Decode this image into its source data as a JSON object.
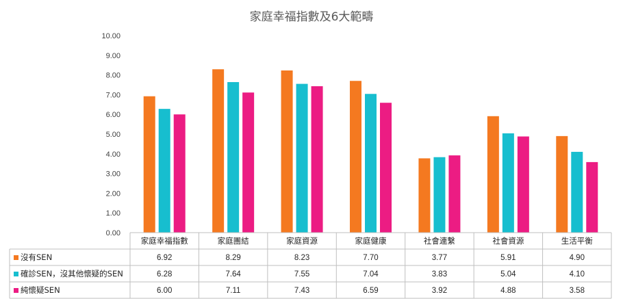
{
  "chart_data": {
    "type": "bar",
    "title": "家庭幸福指數及6大範疇",
    "categories": [
      "家庭幸福指數",
      "家庭團結",
      "家庭資源",
      "家庭健康",
      "社會連繫",
      "社會資源",
      "生活平衡"
    ],
    "ylim": [
      0,
      10
    ],
    "yticks": [
      "0.00",
      "1.00",
      "2.00",
      "3.00",
      "4.00",
      "5.00",
      "6.00",
      "7.00",
      "8.00",
      "9.00",
      "10.00"
    ],
    "grid": false,
    "legend": "data-table",
    "series": [
      {
        "name": "沒有SEN",
        "color": "#F47920",
        "values": [
          6.92,
          8.29,
          8.23,
          7.7,
          3.77,
          5.91,
          4.9
        ],
        "labels": [
          "6.92",
          "8.29",
          "8.23",
          "7.70",
          "3.77",
          "5.91",
          "4.90"
        ]
      },
      {
        "name": "確診SEN，沒其他懷疑的SEN",
        "color": "#17BECF",
        "values": [
          6.28,
          7.64,
          7.55,
          7.04,
          3.83,
          5.04,
          4.1
        ],
        "labels": [
          "6.28",
          "7.64",
          "7.55",
          "7.04",
          "3.83",
          "5.04",
          "4.10"
        ]
      },
      {
        "name": "純懷疑SEN",
        "color": "#EC1C83",
        "values": [
          6.0,
          7.11,
          7.43,
          6.59,
          3.92,
          4.88,
          3.58
        ],
        "labels": [
          "6.00",
          "7.11",
          "7.43",
          "6.59",
          "3.92",
          "4.88",
          "3.58"
        ]
      }
    ]
  }
}
